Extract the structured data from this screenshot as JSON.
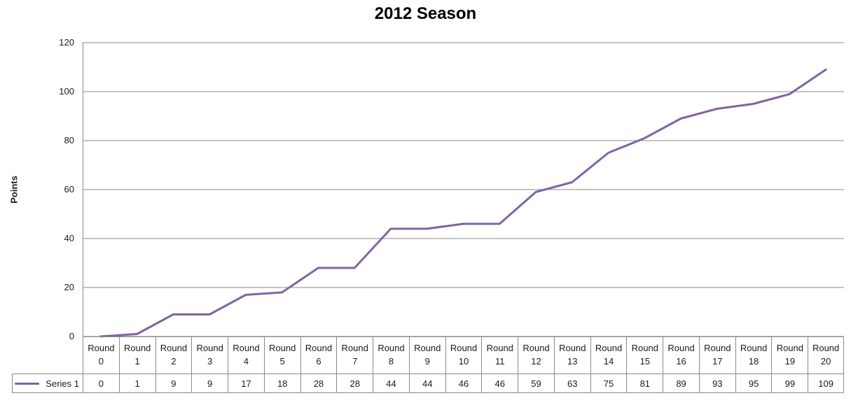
{
  "title": "2012 Season",
  "chart_data": {
    "type": "line",
    "title": "2012 Season",
    "xlabel": "",
    "ylabel": "Points",
    "categories": [
      "Round 0",
      "Round 1",
      "Round 2",
      "Round 3",
      "Round 4",
      "Round 5",
      "Round 6",
      "Round 7",
      "Round 8",
      "Round 9",
      "Round 10",
      "Round 11",
      "Round 12",
      "Round 13",
      "Round 14",
      "Round 15",
      "Round 16",
      "Round 17",
      "Round 18",
      "Round 19",
      "Round 20"
    ],
    "series": [
      {
        "name": "Series 1",
        "values": [
          0,
          1,
          9,
          9,
          17,
          18,
          28,
          28,
          44,
          44,
          46,
          46,
          59,
          63,
          75,
          81,
          89,
          93,
          95,
          99,
          109
        ]
      }
    ],
    "ylim": [
      0,
      120
    ],
    "yticks": [
      0,
      20,
      40,
      60,
      80,
      100,
      120
    ],
    "grid": true,
    "legend_position": "data-table-left",
    "markers": false,
    "colors": {
      "line": "#8064A2",
      "gridline": "#8a8a8a",
      "axis": "#8a8a8a",
      "table_border": "#8a8a8a",
      "text": "#1a1a1a",
      "title_text": "#000000"
    }
  }
}
